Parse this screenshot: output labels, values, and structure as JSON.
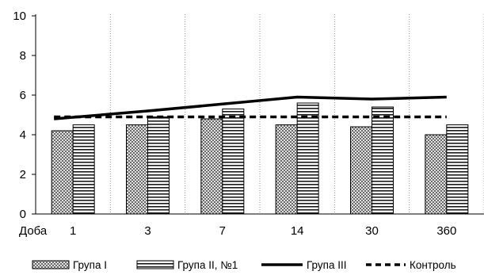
{
  "chart_data": {
    "type": "bar",
    "xlabel": "Доба",
    "categories": [
      "1",
      "3",
      "7",
      "14",
      "30",
      "360"
    ],
    "ylim": [
      0,
      10
    ],
    "yticks": [
      "0",
      "2",
      "4",
      "6",
      "8",
      "10"
    ],
    "grid": "vertical dotted",
    "legend_position": "bottom",
    "series": [
      {
        "name": "Група І",
        "kind": "bar",
        "pattern": "crosshatch",
        "values": [
          4.2,
          4.5,
          4.8,
          4.5,
          4.4,
          4.0
        ]
      },
      {
        "name": "Група ІІ, №1",
        "kind": "bar",
        "pattern": "horizontal-stripes",
        "values": [
          4.5,
          4.9,
          5.3,
          5.6,
          5.4,
          4.5
        ]
      },
      {
        "name": "Група ІІІ",
        "kind": "line",
        "style": "solid",
        "color": "#000000",
        "values": [
          4.8,
          5.2,
          5.55,
          5.9,
          5.8,
          5.9
        ]
      },
      {
        "name": "Контроль",
        "kind": "line",
        "style": "dashed",
        "color": "#000000",
        "values": [
          4.9,
          4.9,
          4.9,
          4.9,
          4.9,
          4.9
        ]
      }
    ]
  }
}
